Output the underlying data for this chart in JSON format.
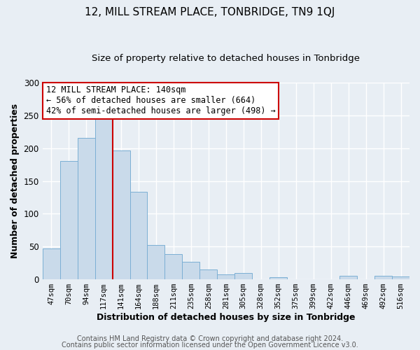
{
  "title": "12, MILL STREAM PLACE, TONBRIDGE, TN9 1QJ",
  "subtitle": "Size of property relative to detached houses in Tonbridge",
  "xlabel": "Distribution of detached houses by size in Tonbridge",
  "ylabel": "Number of detached properties",
  "bar_labels": [
    "47sqm",
    "70sqm",
    "94sqm",
    "117sqm",
    "141sqm",
    "164sqm",
    "188sqm",
    "211sqm",
    "235sqm",
    "258sqm",
    "281sqm",
    "305sqm",
    "328sqm",
    "352sqm",
    "375sqm",
    "399sqm",
    "422sqm",
    "446sqm",
    "469sqm",
    "492sqm",
    "516sqm"
  ],
  "bar_values": [
    47,
    180,
    216,
    250,
    196,
    133,
    52,
    38,
    27,
    15,
    8,
    10,
    0,
    3,
    0,
    0,
    0,
    5,
    0,
    5,
    4
  ],
  "bar_color": "#c9daea",
  "bar_edge_color": "#7bafd4",
  "annotation_box_text": "12 MILL STREAM PLACE: 140sqm\n← 56% of detached houses are smaller (664)\n42% of semi-detached houses are larger (498) →",
  "annotation_box_color": "#ffffff",
  "annotation_box_edge_color": "#cc0000",
  "vline_color": "#cc0000",
  "vline_x_index": 4,
  "ylim": [
    0,
    300
  ],
  "yticks": [
    0,
    50,
    100,
    150,
    200,
    250,
    300
  ],
  "footer_line1": "Contains HM Land Registry data © Crown copyright and database right 2024.",
  "footer_line2": "Contains public sector information licensed under the Open Government Licence v3.0.",
  "bg_color": "#e8eef4",
  "plot_bg_color": "#e8eef4",
  "grid_color": "#ffffff",
  "title_fontsize": 11,
  "subtitle_fontsize": 9.5,
  "axis_label_fontsize": 9,
  "tick_fontsize": 7.5,
  "annotation_fontsize": 8.5,
  "footer_fontsize": 7
}
